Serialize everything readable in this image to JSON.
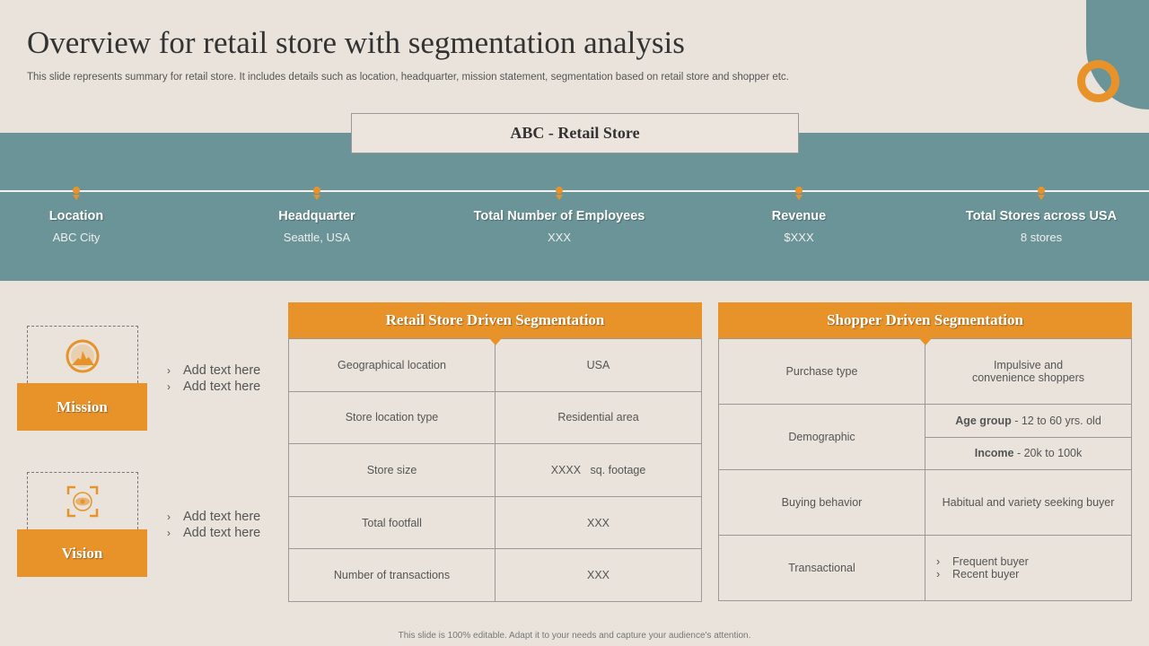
{
  "title": "Overview for retail store with segmentation analysis",
  "subtitle": "This slide represents summary for retail store. It includes details such as location, headquarter, mission statement, segmentation based on retail store and shopper etc.",
  "store_name": "ABC - Retail Store",
  "info": [
    {
      "label": "Location",
      "value": "ABC City"
    },
    {
      "label": "Headquarter",
      "value": "Seattle, USA"
    },
    {
      "label": "Total Number of Employees",
      "value": "XXX"
    },
    {
      "label": "Revenue",
      "value": "$XXX"
    },
    {
      "label": "Total Stores across USA",
      "value": "8 stores"
    }
  ],
  "mission": {
    "label": "Mission",
    "icon": "mountain-target-icon",
    "bullets": [
      "Add text here",
      "Add text here"
    ]
  },
  "vision": {
    "label": "Vision",
    "icon": "eye-focus-icon",
    "bullets": [
      "Add text here",
      "Add text here"
    ]
  },
  "retail_table": {
    "title": "Retail Store Driven Segmentation",
    "rows": [
      [
        "Geographical location",
        "USA"
      ],
      [
        "Store location type",
        "Residential area"
      ],
      [
        "Store size",
        "XXXX   sq. footage"
      ],
      [
        "Total footfall",
        "XXX"
      ],
      [
        "Number of transactions",
        "XXX"
      ]
    ]
  },
  "shopper_table": {
    "title": "Shopper Driven Segmentation",
    "purchase": [
      "Purchase type",
      "Impulsive  and convenience  shoppers"
    ],
    "demographic": {
      "label": "Demographic",
      "age_key": "Age group",
      "age_val": " - 12 to 60 yrs. old",
      "income_key": "Income",
      "income_val": " - 20k to 100k"
    },
    "buying": [
      "Buying behavior",
      "Habitual and variety seeking buyer"
    ],
    "transactional": {
      "label": "Transactional",
      "items": [
        "Frequent  buyer",
        "Recent  buyer"
      ]
    }
  },
  "footer": "This slide is 100% editable. Adapt it to your needs and capture your audience's attention.",
  "colors": {
    "background": "#e9e3dc",
    "teal": "#6a9497",
    "orange": "#e8932a"
  }
}
